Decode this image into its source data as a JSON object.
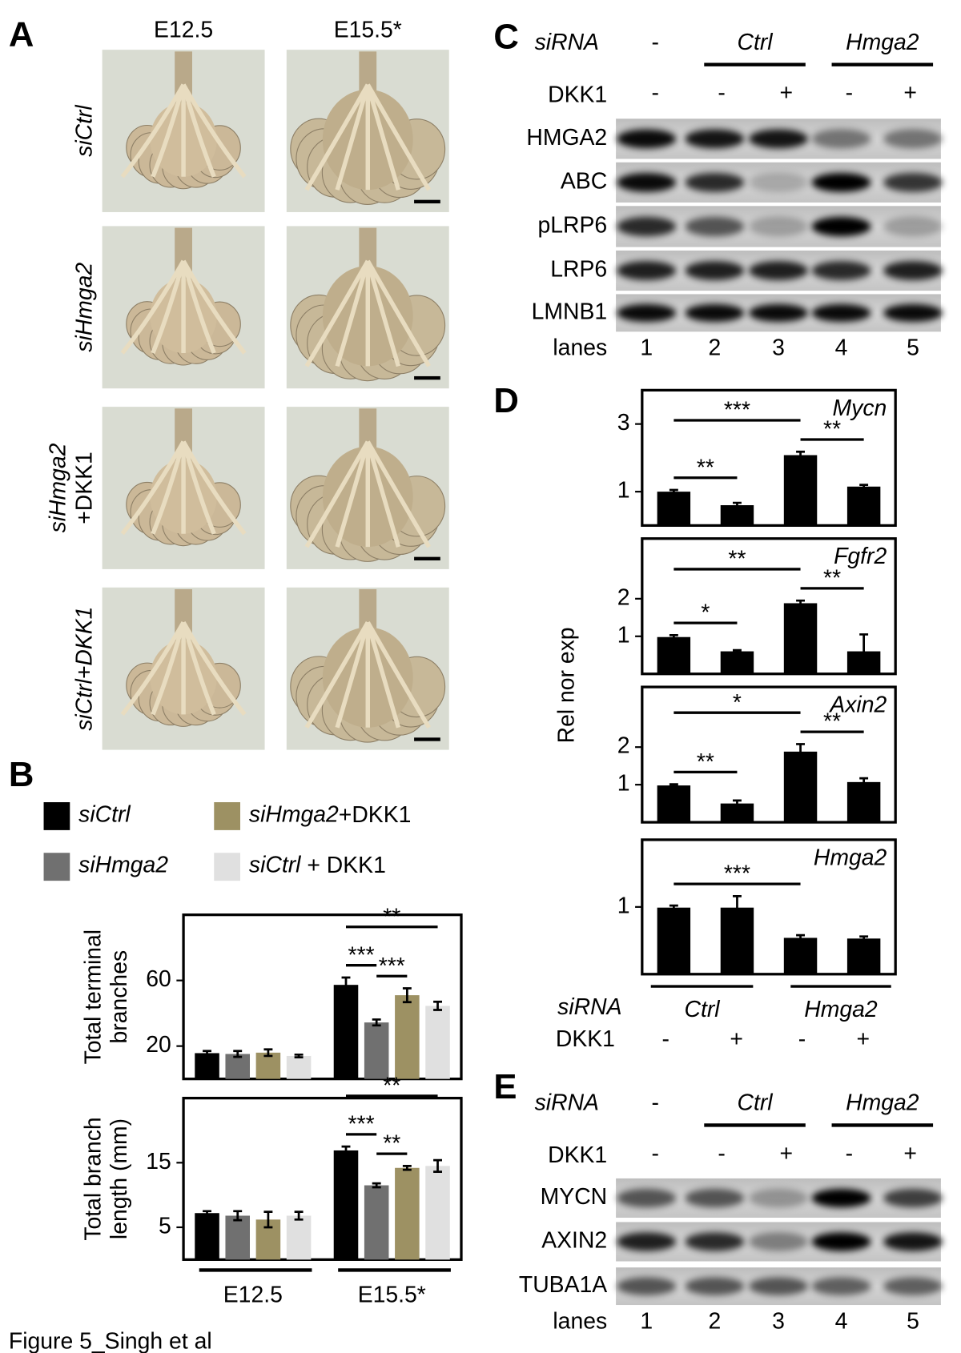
{
  "panel_labels": [
    "A",
    "B",
    "C",
    "D",
    "E"
  ],
  "footer": "Figure 5_Singh et al",
  "panel_a": {
    "columns": [
      "E12.5",
      "E15.5*"
    ],
    "rows": [
      [
        "siCtrl"
      ],
      [
        "siHmga2"
      ],
      [
        "siHmga2",
        "+DKK1"
      ],
      [
        "siCtrl+DKK1"
      ]
    ]
  },
  "blot_c": {
    "sirna_label": "siRNA",
    "sirna_groups": [
      "-",
      "Ctrl",
      "Hmga2"
    ],
    "dkk1_label": "DKK1",
    "dkk1": [
      "-",
      "-",
      "+",
      "-",
      "+"
    ],
    "proteins": [
      "HMGA2",
      "ABC",
      "pLRP6",
      "LRP6",
      "LMNB1"
    ],
    "lanes_label": "lanes",
    "lanes": [
      1,
      2,
      3,
      4,
      5
    ]
  },
  "blot_e": {
    "sirna_label": "siRNA",
    "sirna_groups": [
      "-",
      "Ctrl",
      "Hmga2"
    ],
    "dkk1_label": "DKK1",
    "dkk1": [
      "-",
      "-",
      "+",
      "-",
      "+"
    ],
    "proteins": [
      "MYCN",
      "AXIN2",
      "TUBA1A"
    ],
    "lanes_label": "lanes",
    "lanes": [
      1,
      2,
      3,
      4,
      5
    ]
  },
  "panel_d": {
    "ylabel": "Rel nor exp",
    "sirna_label": "siRNA",
    "groups": [
      "Ctrl",
      "Hmga2"
    ],
    "dkk1_label": "DKK1",
    "dkk1": [
      "-",
      "+",
      "-",
      "+"
    ]
  },
  "chart_data": [
    {
      "type": "bar",
      "ylabel": [
        "Total terminal",
        "branches"
      ],
      "categories": [
        null,
        null
      ],
      "ylim": [
        0,
        100
      ],
      "yticks": [
        20,
        60
      ],
      "series": [
        {
          "name": "siCtrl",
          "color": "#000000",
          "values": [
            15.7,
            57.3
          ],
          "errors": [
            1.3,
            4.5
          ]
        },
        {
          "name": "siHmga2",
          "color": "#707070",
          "values": [
            15.2,
            34.4
          ],
          "errors": [
            1.8,
            1.8
          ]
        },
        {
          "name": "siHmga2+DKK1",
          "color": "#9d9163",
          "values": [
            16,
            51
          ],
          "errors": [
            2,
            4.2
          ]
        },
        {
          "name": "siCtrl + DKK1",
          "color": "#e0e0e0",
          "values": [
            14,
            44.5
          ],
          "errors": [
            0.8,
            2.5
          ]
        }
      ],
      "annotations": [
        {
          "text": "***",
          "category": 1,
          "from": 0,
          "to": 1
        },
        {
          "text": "***",
          "category": 1,
          "from": 1,
          "to": 2
        },
        {
          "text": "**",
          "category": 1,
          "from": 0,
          "to": 3
        }
      ]
    },
    {
      "type": "bar",
      "ylabel": [
        "Total branch",
        "length (mm)"
      ],
      "categories": [
        "E12.5",
        "E15.5*"
      ],
      "ylim": [
        0,
        25
      ],
      "yticks": [
        5,
        15
      ],
      "series": [
        {
          "color": "#000000",
          "values": [
            7.2,
            16.9
          ],
          "errors": [
            0.3,
            0.6
          ]
        },
        {
          "color": "#707070",
          "values": [
            6.8,
            11.5
          ],
          "errors": [
            0.7,
            0.3
          ]
        },
        {
          "color": "#9d9163",
          "values": [
            6.2,
            14.2
          ],
          "errors": [
            1.2,
            0.3
          ]
        },
        {
          "color": "#e0e0e0",
          "values": [
            6.8,
            14.5
          ],
          "errors": [
            0.6,
            0.9
          ]
        }
      ],
      "annotations": [
        {
          "text": "***",
          "category": 1,
          "from": 0,
          "to": 1
        },
        {
          "text": "**",
          "category": 1,
          "from": 1,
          "to": 2
        },
        {
          "text": "**",
          "category": 1,
          "from": 0,
          "to": 3
        }
      ]
    },
    {
      "type": "bar",
      "title": "Mycn",
      "categories": [
        null,
        null,
        null,
        null
      ],
      "ylim": [
        0,
        4
      ],
      "yticks": [
        1,
        3
      ],
      "series": [
        {
          "color": "#000000",
          "values": [
            1.0,
            0.6,
            2.08,
            1.15
          ],
          "errors": [
            0.05,
            0.07,
            0.1,
            0.05
          ]
        }
      ],
      "annotations": [
        {
          "text": "***",
          "from": 0,
          "to": 2
        },
        {
          "text": "**",
          "from": 0,
          "to": 1
        },
        {
          "text": "**",
          "from": 2,
          "to": 3
        }
      ]
    },
    {
      "type": "bar",
      "title": "Fgfr2",
      "categories": [
        null,
        null,
        null,
        null
      ],
      "ylim": [
        0,
        3.6
      ],
      "yticks": [
        1,
        2
      ],
      "series": [
        {
          "color": "#000000",
          "values": [
            0.98,
            0.6,
            1.88,
            0.6
          ],
          "errors": [
            0.05,
            0.03,
            0.07,
            0.45
          ]
        }
      ],
      "annotations": [
        {
          "text": "**",
          "from": 0,
          "to": 2
        },
        {
          "text": "*",
          "from": 0,
          "to": 1
        },
        {
          "text": "**",
          "from": 2,
          "to": 3
        }
      ]
    },
    {
      "type": "bar",
      "title": "Axin2",
      "categories": [
        null,
        null,
        null,
        null
      ],
      "ylim": [
        0,
        3.6
      ],
      "yticks": [
        1,
        2
      ],
      "series": [
        {
          "color": "#000000",
          "values": [
            0.98,
            0.5,
            1.88,
            1.07
          ],
          "errors": [
            0.03,
            0.08,
            0.2,
            0.1
          ]
        }
      ],
      "annotations": [
        {
          "text": "*",
          "from": 0,
          "to": 2
        },
        {
          "text": "**",
          "from": 0,
          "to": 1
        },
        {
          "text": "**",
          "from": 2,
          "to": 3
        }
      ]
    },
    {
      "type": "bar",
      "title": "Hmga2",
      "categories": [
        null,
        null,
        null,
        null
      ],
      "ylim": [
        0,
        2
      ],
      "yticks": [
        1
      ],
      "series": [
        {
          "color": "#000000",
          "values": [
            0.99,
            0.99,
            0.54,
            0.53
          ],
          "errors": [
            0.03,
            0.17,
            0.04,
            0.03
          ]
        }
      ],
      "annotations": [
        {
          "text": "***",
          "from": 0,
          "to": 2
        }
      ]
    }
  ]
}
